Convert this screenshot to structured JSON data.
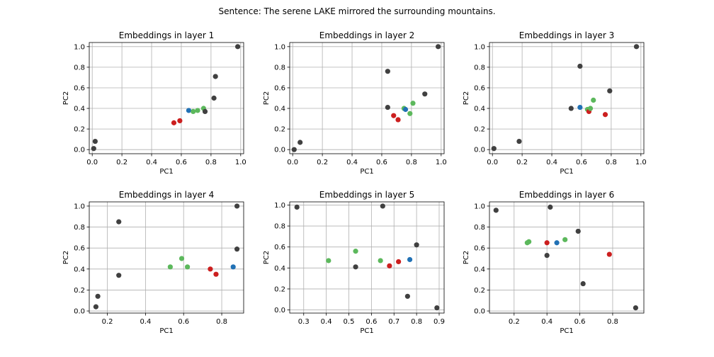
{
  "figure": {
    "suptitle": "Sentence: The serene LAKE mirrored the surrounding mountains."
  },
  "colors": {
    "gray": "#404040",
    "red": "#cc1f1f",
    "blue": "#2171b5",
    "green": "#5cb85c"
  },
  "chart_data": [
    {
      "type": "scatter",
      "title": "Embeddings in layer 1",
      "xlabel": "PC1",
      "ylabel": "PC2",
      "xlim": [
        -0.02,
        1.02
      ],
      "ylim": [
        -0.04,
        1.04
      ],
      "xticks": [
        0.0,
        0.2,
        0.4,
        0.6,
        0.8,
        1.0
      ],
      "yticks": [
        0.0,
        0.2,
        0.4,
        0.6,
        0.8,
        1.0
      ],
      "grid": true,
      "points": [
        {
          "x": 0.01,
          "y": 0.01,
          "color": "gray"
        },
        {
          "x": 0.02,
          "y": 0.08,
          "color": "gray"
        },
        {
          "x": 0.55,
          "y": 0.26,
          "color": "red"
        },
        {
          "x": 0.59,
          "y": 0.28,
          "color": "red"
        },
        {
          "x": 0.65,
          "y": 0.38,
          "color": "blue"
        },
        {
          "x": 0.68,
          "y": 0.37,
          "color": "green"
        },
        {
          "x": 0.71,
          "y": 0.38,
          "color": "green"
        },
        {
          "x": 0.75,
          "y": 0.4,
          "color": "green"
        },
        {
          "x": 0.76,
          "y": 0.37,
          "color": "gray"
        },
        {
          "x": 0.82,
          "y": 0.5,
          "color": "gray"
        },
        {
          "x": 0.83,
          "y": 0.71,
          "color": "gray"
        },
        {
          "x": 0.98,
          "y": 1.0,
          "color": "gray"
        }
      ]
    },
    {
      "type": "scatter",
      "title": "Embeddings in layer 2",
      "xlabel": "PC1",
      "ylabel": "PC2",
      "xlim": [
        -0.02,
        1.02
      ],
      "ylim": [
        -0.04,
        1.04
      ],
      "xticks": [
        0.0,
        0.2,
        0.4,
        0.6,
        0.8,
        1.0
      ],
      "yticks": [
        0.0,
        0.2,
        0.4,
        0.6,
        0.8,
        1.0
      ],
      "grid": true,
      "points": [
        {
          "x": 0.01,
          "y": 0.0,
          "color": "gray"
        },
        {
          "x": 0.05,
          "y": 0.07,
          "color": "gray"
        },
        {
          "x": 0.64,
          "y": 0.41,
          "color": "gray"
        },
        {
          "x": 0.64,
          "y": 0.76,
          "color": "gray"
        },
        {
          "x": 0.68,
          "y": 0.33,
          "color": "red"
        },
        {
          "x": 0.71,
          "y": 0.29,
          "color": "red"
        },
        {
          "x": 0.75,
          "y": 0.4,
          "color": "green"
        },
        {
          "x": 0.76,
          "y": 0.39,
          "color": "blue"
        },
        {
          "x": 0.79,
          "y": 0.35,
          "color": "green"
        },
        {
          "x": 0.81,
          "y": 0.45,
          "color": "green"
        },
        {
          "x": 0.89,
          "y": 0.54,
          "color": "gray"
        },
        {
          "x": 0.98,
          "y": 1.0,
          "color": "gray"
        }
      ]
    },
    {
      "type": "scatter",
      "title": "Embeddings in layer 3",
      "xlabel": "PC1",
      "ylabel": "PC2",
      "xlim": [
        -0.02,
        1.02
      ],
      "ylim": [
        -0.04,
        1.04
      ],
      "xticks": [
        0.0,
        0.2,
        0.4,
        0.6,
        0.8,
        1.0
      ],
      "yticks": [
        0.0,
        0.2,
        0.4,
        0.6,
        0.8,
        1.0
      ],
      "grid": true,
      "points": [
        {
          "x": 0.01,
          "y": 0.01,
          "color": "gray"
        },
        {
          "x": 0.18,
          "y": 0.08,
          "color": "gray"
        },
        {
          "x": 0.53,
          "y": 0.4,
          "color": "gray"
        },
        {
          "x": 0.59,
          "y": 0.41,
          "color": "blue"
        },
        {
          "x": 0.59,
          "y": 0.81,
          "color": "gray"
        },
        {
          "x": 0.64,
          "y": 0.39,
          "color": "green"
        },
        {
          "x": 0.65,
          "y": 0.37,
          "color": "red"
        },
        {
          "x": 0.66,
          "y": 0.4,
          "color": "green"
        },
        {
          "x": 0.68,
          "y": 0.48,
          "color": "green"
        },
        {
          "x": 0.76,
          "y": 0.34,
          "color": "red"
        },
        {
          "x": 0.79,
          "y": 0.57,
          "color": "gray"
        },
        {
          "x": 0.97,
          "y": 1.0,
          "color": "gray"
        }
      ]
    },
    {
      "type": "scatter",
      "title": "Embeddings in layer 4",
      "xlabel": "PC1",
      "ylabel": "PC2",
      "xlim": [
        0.105,
        0.915
      ],
      "ylim": [
        -0.02,
        1.04
      ],
      "xticks": [
        0.2,
        0.4,
        0.6,
        0.8
      ],
      "yticks": [
        0.0,
        0.2,
        0.4,
        0.6,
        0.8,
        1.0
      ],
      "grid": true,
      "points": [
        {
          "x": 0.14,
          "y": 0.04,
          "color": "gray"
        },
        {
          "x": 0.15,
          "y": 0.14,
          "color": "gray"
        },
        {
          "x": 0.26,
          "y": 0.34,
          "color": "gray"
        },
        {
          "x": 0.26,
          "y": 0.85,
          "color": "gray"
        },
        {
          "x": 0.53,
          "y": 0.42,
          "color": "green"
        },
        {
          "x": 0.59,
          "y": 0.5,
          "color": "green"
        },
        {
          "x": 0.62,
          "y": 0.42,
          "color": "green"
        },
        {
          "x": 0.74,
          "y": 0.4,
          "color": "red"
        },
        {
          "x": 0.77,
          "y": 0.35,
          "color": "red"
        },
        {
          "x": 0.86,
          "y": 0.42,
          "color": "blue"
        },
        {
          "x": 0.88,
          "y": 1.0,
          "color": "gray"
        },
        {
          "x": 0.88,
          "y": 0.59,
          "color": "gray"
        }
      ]
    },
    {
      "type": "scatter",
      "title": "Embeddings in layer 5",
      "xlabel": "PC1",
      "ylabel": "PC2",
      "xlim": [
        0.238,
        0.922
      ],
      "ylim": [
        -0.03,
        1.03
      ],
      "xticks": [
        0.3,
        0.4,
        0.5,
        0.6,
        0.7,
        0.8,
        0.9
      ],
      "yticks": [
        0.0,
        0.2,
        0.4,
        0.6,
        0.8,
        1.0
      ],
      "grid": true,
      "points": [
        {
          "x": 0.27,
          "y": 0.98,
          "color": "gray"
        },
        {
          "x": 0.41,
          "y": 0.47,
          "color": "green"
        },
        {
          "x": 0.53,
          "y": 0.56,
          "color": "green"
        },
        {
          "x": 0.53,
          "y": 0.41,
          "color": "gray"
        },
        {
          "x": 0.64,
          "y": 0.47,
          "color": "green"
        },
        {
          "x": 0.65,
          "y": 0.99,
          "color": "gray"
        },
        {
          "x": 0.68,
          "y": 0.42,
          "color": "red"
        },
        {
          "x": 0.72,
          "y": 0.46,
          "color": "red"
        },
        {
          "x": 0.76,
          "y": 0.13,
          "color": "gray"
        },
        {
          "x": 0.77,
          "y": 0.48,
          "color": "blue"
        },
        {
          "x": 0.8,
          "y": 0.62,
          "color": "gray"
        },
        {
          "x": 0.89,
          "y": 0.02,
          "color": "gray"
        }
      ]
    },
    {
      "type": "scatter",
      "title": "Embeddings in layer 6",
      "xlabel": "PC1",
      "ylabel": "PC2",
      "xlim": [
        0.05,
        0.99
      ],
      "ylim": [
        -0.02,
        1.04
      ],
      "xticks": [
        0.2,
        0.4,
        0.6,
        0.8
      ],
      "yticks": [
        0.0,
        0.2,
        0.4,
        0.6,
        0.8,
        1.0
      ],
      "grid": true,
      "points": [
        {
          "x": 0.09,
          "y": 0.96,
          "color": "gray"
        },
        {
          "x": 0.28,
          "y": 0.65,
          "color": "green"
        },
        {
          "x": 0.29,
          "y": 0.66,
          "color": "green"
        },
        {
          "x": 0.4,
          "y": 0.53,
          "color": "gray"
        },
        {
          "x": 0.4,
          "y": 0.65,
          "color": "red"
        },
        {
          "x": 0.42,
          "y": 0.99,
          "color": "gray"
        },
        {
          "x": 0.46,
          "y": 0.65,
          "color": "blue"
        },
        {
          "x": 0.51,
          "y": 0.68,
          "color": "green"
        },
        {
          "x": 0.59,
          "y": 0.76,
          "color": "gray"
        },
        {
          "x": 0.62,
          "y": 0.26,
          "color": "gray"
        },
        {
          "x": 0.78,
          "y": 0.54,
          "color": "red"
        },
        {
          "x": 0.94,
          "y": 0.03,
          "color": "gray"
        }
      ]
    }
  ]
}
